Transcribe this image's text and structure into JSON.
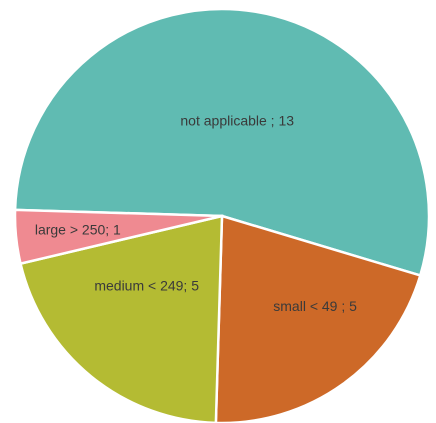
{
  "chart_data": {
    "type": "pie",
    "values": [
      13,
      5,
      5,
      1
    ],
    "value_labels": [
      "not applicable ; 13",
      "small < 49 ; 5",
      "medium < 249; 5",
      "large > 250; 1"
    ],
    "colors": [
      "#60bbb2",
      "#cd6928",
      "#b4bb33",
      "#ef8a91"
    ]
  }
}
